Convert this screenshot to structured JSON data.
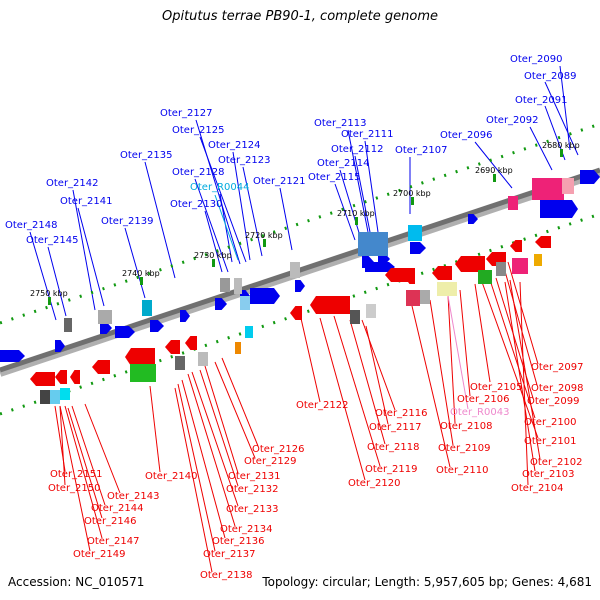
{
  "title": "Opitutus terrae PB90-1, complete genome",
  "footer": {
    "accession": "Accession: NC_010571",
    "summary": "Topology: circular; Length: 5,957,605 bp; Genes: 4,681"
  },
  "colors": {
    "forward": "#0000ee",
    "reverse": "#ee0000",
    "rna_cyan": "#00aadd",
    "rna_pink": "#ee88cc",
    "axis": "#777777",
    "tick": "#119911"
  },
  "ticks": [
    "2680 kbp",
    "2690 kbp",
    "2700 kbp",
    "2710 kbp",
    "2720 kbp",
    "2730 kbp",
    "2740 kbp",
    "2750 kbp"
  ],
  "top_labels": [
    "Oter_2090",
    "Oter_2089",
    "Oter_2091",
    "Oter_2092",
    "Oter_2096",
    "Oter_2113",
    "Oter_2111",
    "Oter_2112",
    "Oter_2107",
    "Oter_2114",
    "Oter_2115",
    "Oter_2127",
    "Oter_2125",
    "Oter_2124",
    "Oter_2135",
    "Oter_2128",
    "Oter_2123",
    "Oter_R0044",
    "Oter_2121",
    "Oter_2130",
    "Oter_2142",
    "Oter_2141",
    "Oter_2139",
    "Oter_2148",
    "Oter_2145"
  ],
  "bottom_labels": [
    "Oter_2097",
    "Oter_2098",
    "Oter_2105",
    "Oter_2099",
    "Oter_2106",
    "Oter_R0043",
    "Oter_2100",
    "Oter_2122",
    "Oter_2116",
    "Oter_2108",
    "Oter_2117",
    "Oter_2101",
    "Oter_2118",
    "Oter_2109",
    "Oter_2126",
    "Oter_2102",
    "Oter_2129",
    "Oter_2119",
    "Oter_2110",
    "Oter_2103",
    "Oter_2140",
    "Oter_2131",
    "Oter_2151",
    "Oter_2120",
    "Oter_2104",
    "Oter_2132",
    "Oter_2150",
    "Oter_2143",
    "Oter_2144",
    "Oter_2133",
    "Oter_2146",
    "Oter_2134",
    "Oter_2147",
    "Oter_2136",
    "Oter_2149",
    "Oter_2137",
    "Oter_2138"
  ]
}
